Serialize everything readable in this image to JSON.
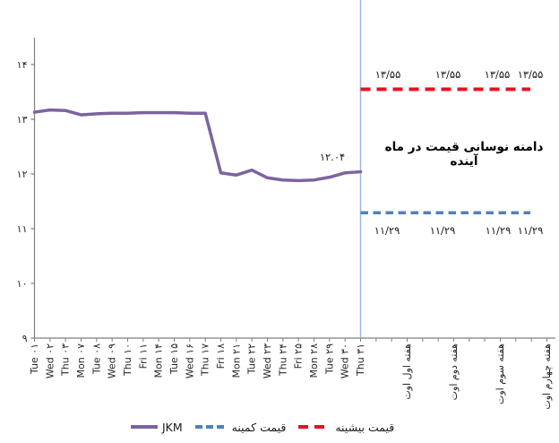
{
  "chart_data": {
    "type": "line",
    "annotation": "دامنه نوسانی قیمت در ماه آینده",
    "x_categories_daily": [
      "Tue ۰۱",
      "Wed ۰۲",
      "Thu ۰۳",
      "Mon ۰۷",
      "Tue ۰۸",
      "Wed ۰۹",
      "Thu ۱۰",
      "Fri ۱۱",
      "Mon ۱۴",
      "Tue ۱۵",
      "Wed ۱۶",
      "Thu ۱۷",
      "Fri ۱۸",
      "Mon ۲۱",
      "Tue ۲۲",
      "Wed ۲۳",
      "Thu ۲۴",
      "Fri ۲۵",
      "Mon ۲۸",
      "Tue ۲۹",
      "Wed ۳۰",
      "Thu ۳۱"
    ],
    "x_categories_weekly": [
      "هفته اول اوت",
      "هفته دوم اوت",
      "هفته سوم اوت",
      "هفته چهارم اوت"
    ],
    "series": [
      {
        "name": "JKM",
        "type": "line",
        "color": "#7C63A0",
        "values": [
          13.13,
          13.17,
          13.16,
          13.08,
          13.1,
          13.11,
          13.11,
          13.12,
          13.12,
          13.12,
          13.11,
          13.11,
          12.02,
          11.98,
          12.07,
          11.93,
          11.89,
          11.88,
          11.89,
          11.94,
          12.02,
          12.04
        ],
        "end_label": "۱۲.۰۴"
      },
      {
        "name": "قیمت کمینه",
        "type": "constant-dashed",
        "color": "#4F81BD",
        "value": 11.29,
        "point_labels": [
          "۱۱/۲۹",
          "۱۱/۲۹",
          "۱۱/۲۹",
          "۱۱/۲۹"
        ]
      },
      {
        "name": "قیمت بیشینه",
        "type": "constant-dashed",
        "color": "#E81123",
        "value": 13.55,
        "point_labels": [
          "۱۳/۵۵",
          "۱۳/۵۵",
          "۱۳/۵۵",
          "۱۳/۵۵"
        ]
      }
    ],
    "y_axis": {
      "min": 9,
      "max": 14,
      "ticks": [
        {
          "value": 9,
          "label": "۹"
        },
        {
          "value": 10,
          "label": "۱۰"
        },
        {
          "value": 11,
          "label": "۱۱"
        },
        {
          "value": 12,
          "label": "۱۲"
        },
        {
          "value": 13,
          "label": "۱۳"
        },
        {
          "value": 14,
          "label": "۱۴"
        }
      ]
    },
    "divider_color": "#9DB9DC",
    "axis_color": "#7F7F7F",
    "text_color": "#262626",
    "grid": "off",
    "legend_position": "bottom"
  }
}
